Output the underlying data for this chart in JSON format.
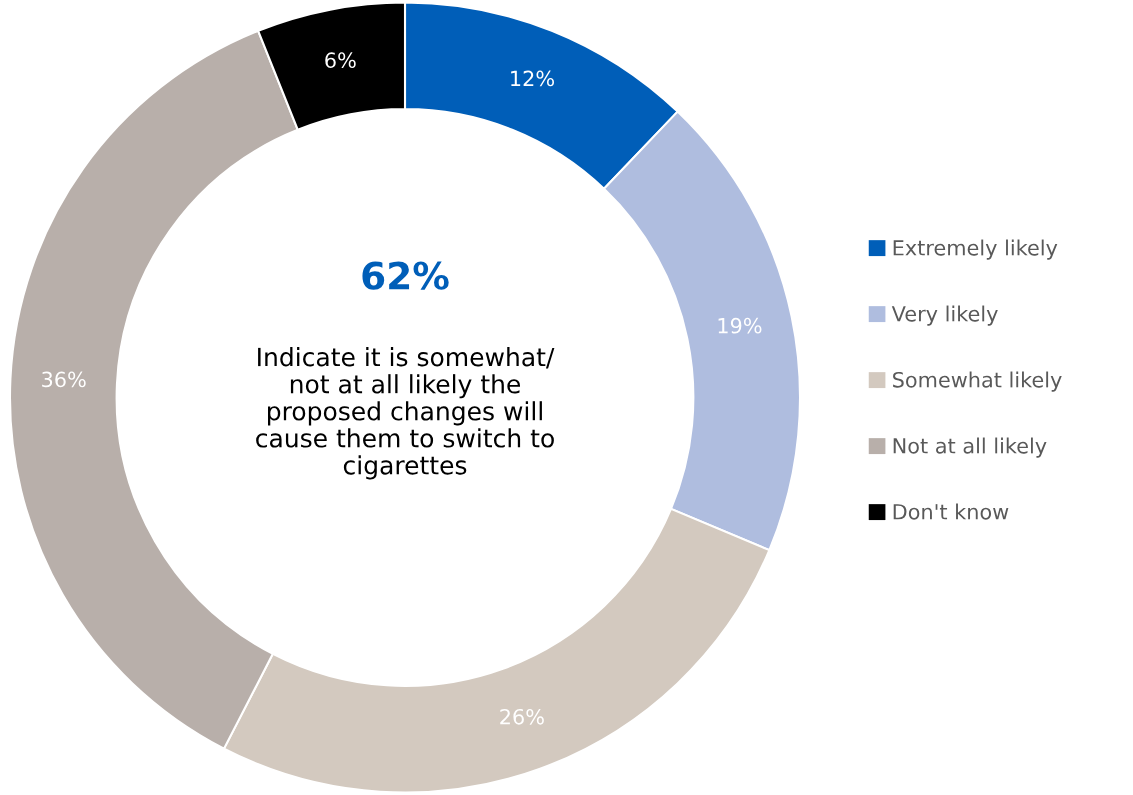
{
  "chart_data": {
    "type": "donut",
    "categories": [
      "Extremely likely",
      "Very likely",
      "Somewhat likely",
      "Not at all likely",
      "Don't know"
    ],
    "values": [
      12,
      19,
      26,
      36,
      6
    ],
    "colors": [
      "#005eb8",
      "#afbddf",
      "#d3c9bf",
      "#b8afaa",
      "#000000"
    ],
    "value_labels": [
      "12%",
      "19%",
      "26%",
      "36%",
      "6%"
    ],
    "annotations": [
      "62%",
      "Indicate it is somewhat/\nnot at all likely the\nproposed changes will\ncause them to switch to\ncigarettes"
    ],
    "legend": "right"
  }
}
